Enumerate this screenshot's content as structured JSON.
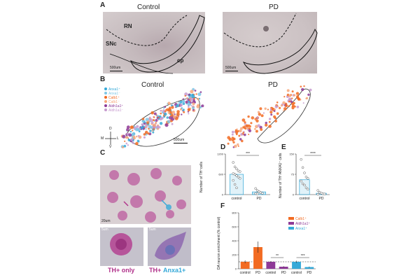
{
  "panelA": {
    "letter": "A",
    "left_title": "Control",
    "right_title": "PD",
    "region_rn": "RN",
    "region_snc": "SNc",
    "region_cp": "cp",
    "scale_left": "500um",
    "scale_right": "500um"
  },
  "panelB": {
    "letter": "B",
    "left_title": "Control",
    "right_title": "PD",
    "legend": [
      {
        "label": "Anxa1⁺",
        "color": "#36a9d8"
      },
      {
        "label": "Anxa1⁻",
        "color": "#7fc6e5"
      },
      {
        "label": "Calb1⁺",
        "color": "#f26b22"
      },
      {
        "label": "Calb1⁻",
        "color": "#f7a77a"
      },
      {
        "label": "Aldh1a1⁺",
        "color": "#8e3a97"
      },
      {
        "label": "Aldh1a1⁻",
        "color": "#c79bcf"
      }
    ],
    "scale": "500um",
    "axis_d": "D",
    "axis_l": "L",
    "axis_m": "M",
    "axis_v": "V"
  },
  "panelC": {
    "letter": "C",
    "scale": "20um",
    "inset_left_scale": "5um",
    "inset_right_scale": "5um",
    "label_th_only": "TH+ only",
    "label_th": "TH+",
    "label_anxa1": "Anxa1+",
    "colors": {
      "th": "#b0308a",
      "anxa1": "#36a9d8"
    }
  },
  "panelD": {
    "letter": "D",
    "ylabel": "Number of TH⁺cells",
    "categories": [
      "control",
      "PD"
    ],
    "significance": "***",
    "chart_data": {
      "type": "bar",
      "categories": [
        "control",
        "PD"
      ],
      "values": [
        600,
        80
      ],
      "ylim": [
        0,
        1200
      ],
      "points": {
        "control": [
          950,
          820,
          760,
          700,
          680,
          620,
          600,
          560,
          520,
          480,
          420,
          300,
          200
        ],
        "PD": [
          180,
          120,
          90,
          60,
          40,
          30,
          20
        ]
      }
    }
  },
  "panelE": {
    "letter": "E",
    "ylabel": "Number of TH⁺ANXA1⁺ cells",
    "categories": [
      "control",
      "PD"
    ],
    "significance": "****",
    "chart_data": {
      "type": "bar",
      "categories": [
        "control",
        "PD"
      ],
      "values": [
        55,
        5
      ],
      "ylim": [
        0,
        150
      ],
      "points": {
        "control": [
          130,
          100,
          80,
          65,
          60,
          50,
          40,
          35,
          25,
          20
        ],
        "PD": [
          15,
          8,
          5,
          3,
          2,
          1
        ]
      }
    }
  },
  "panelF": {
    "letter": "F",
    "ylabel": "DA neuron enrichment (% control)",
    "legend": [
      {
        "label": "Calb1⁺",
        "color": "#f26b22"
      },
      {
        "label": "Aldh1a1⁺",
        "color": "#8e3a97"
      },
      {
        "label": "Anxa1⁺",
        "color": "#36a9d8"
      }
    ],
    "chart_data": {
      "type": "bar",
      "groups": [
        "Calb1⁺",
        "Aldh1a1⁺",
        "Anxa1⁺"
      ],
      "categories": [
        "control",
        "PD",
        "control",
        "PD",
        "control",
        "PD"
      ],
      "values": [
        100,
        310,
        100,
        30,
        100,
        25
      ],
      "errors": [
        20,
        80,
        10,
        8,
        15,
        6
      ],
      "ylim": [
        0,
        800
      ],
      "reference_line": 100,
      "significance": [
        "",
        "**",
        "***"
      ]
    }
  }
}
